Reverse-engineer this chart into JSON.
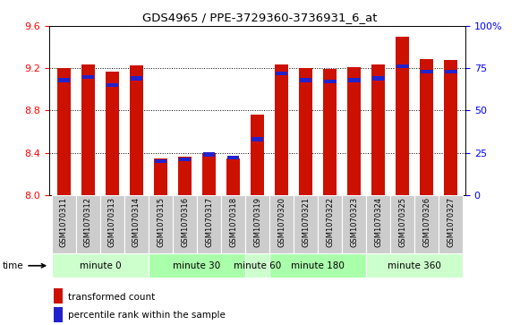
{
  "title": "GDS4965 / PPE-3729360-3736931_6_at",
  "samples": [
    "GSM1070311",
    "GSM1070312",
    "GSM1070313",
    "GSM1070314",
    "GSM1070315",
    "GSM1070316",
    "GSM1070317",
    "GSM1070318",
    "GSM1070319",
    "GSM1070320",
    "GSM1070321",
    "GSM1070322",
    "GSM1070323",
    "GSM1070324",
    "GSM1070325",
    "GSM1070326",
    "GSM1070327"
  ],
  "transformed_count": [
    9.2,
    9.24,
    9.17,
    9.23,
    8.35,
    8.36,
    8.4,
    8.35,
    8.76,
    9.24,
    9.2,
    9.19,
    9.21,
    9.24,
    9.5,
    9.29,
    9.28
  ],
  "percentile_rank": [
    68,
    70,
    65,
    69,
    20,
    21,
    24,
    22,
    33,
    72,
    68,
    67,
    68,
    69,
    76,
    73,
    73
  ],
  "groups": [
    {
      "label": "minute 0",
      "start": 0,
      "end": 4,
      "color": "#ccffcc"
    },
    {
      "label": "minute 30",
      "start": 4,
      "end": 8,
      "color": "#aaffaa"
    },
    {
      "label": "minute 60",
      "start": 8,
      "end": 9,
      "color": "#ccffcc"
    },
    {
      "label": "minute 180",
      "start": 9,
      "end": 13,
      "color": "#aaffaa"
    },
    {
      "label": "minute 360",
      "start": 13,
      "end": 17,
      "color": "#ccffcc"
    }
  ],
  "ylim_left": [
    8.0,
    9.6
  ],
  "ylim_right": [
    0,
    100
  ],
  "yticks_left": [
    8.0,
    8.4,
    8.8,
    9.2,
    9.6
  ],
  "yticks_right": [
    0,
    25,
    50,
    75,
    100
  ],
  "bar_color": "#cc1100",
  "percentile_color": "#2222cc",
  "bar_width": 0.55,
  "base_value": 8.0
}
